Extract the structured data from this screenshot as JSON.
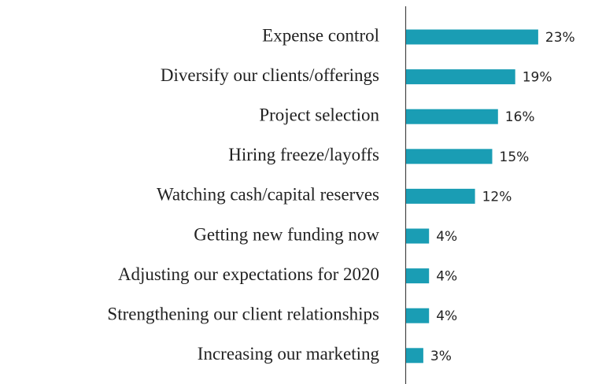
{
  "chart_data": {
    "type": "bar",
    "orientation": "horizontal",
    "categories": [
      "Expense control",
      "Diversify our clients/offerings",
      "Project selection",
      "Hiring freeze/layoffs",
      "Watching cash/capital reserves",
      "Getting new funding now",
      "Adjusting our expectations for 2020",
      "Strengthening our client relationships",
      "Increasing our marketing"
    ],
    "values": [
      23,
      19,
      16,
      15,
      12,
      4,
      4,
      4,
      3
    ],
    "value_labels": [
      "23%",
      "19%",
      "16%",
      "15%",
      "12%",
      "4%",
      "4%",
      "4%",
      "3%"
    ],
    "color": "#1a9db4"
  }
}
